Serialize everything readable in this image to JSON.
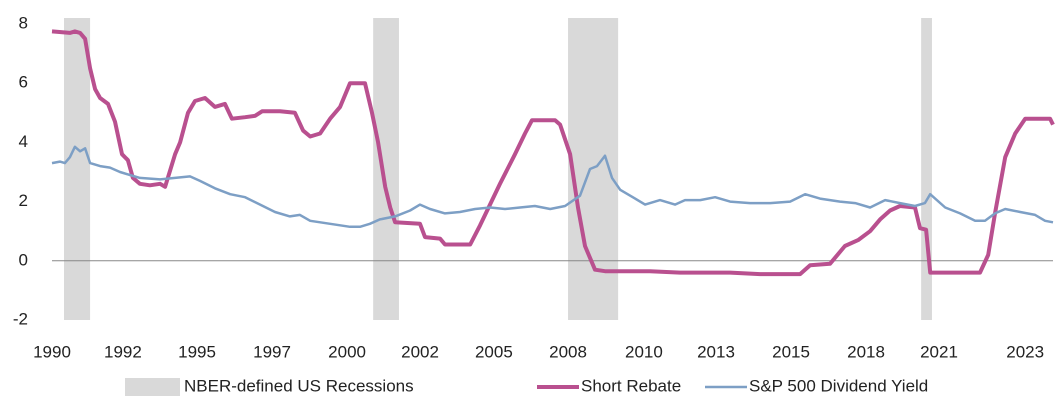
{
  "chart_data": {
    "type": "line",
    "xlim": [
      1990,
      2024.16
    ],
    "ylim": [
      -2,
      8
    ],
    "yticks": [
      -2,
      0,
      2,
      4,
      6,
      8
    ],
    "xticks": [
      {
        "value": 1990,
        "label": "1990"
      },
      {
        "value": 1992.42,
        "label": "1992"
      },
      {
        "value": 1994.95,
        "label": "1995"
      },
      {
        "value": 1997.51,
        "label": "1997"
      },
      {
        "value": 2000.07,
        "label": "2000"
      },
      {
        "value": 2002.56,
        "label": "2002"
      },
      {
        "value": 2005.08,
        "label": "2005"
      },
      {
        "value": 2007.61,
        "label": "2008"
      },
      {
        "value": 2010.2,
        "label": "2010"
      },
      {
        "value": 2012.66,
        "label": "2013"
      },
      {
        "value": 2015.22,
        "label": "2015"
      },
      {
        "value": 2017.78,
        "label": "2018"
      },
      {
        "value": 2020.27,
        "label": "2021"
      },
      {
        "value": 2023.21,
        "label": "2023"
      }
    ],
    "bands": {
      "name": "NBER-defined US Recessions",
      "color": "#d9d9d9",
      "spans": [
        [
          1990.41,
          1991.3
        ],
        [
          2000.96,
          2001.84
        ],
        [
          2007.61,
          2009.32
        ],
        [
          2019.66,
          2020.03
        ]
      ]
    },
    "series": [
      {
        "name": "Short Rebate",
        "color": "#b9508f",
        "width": 4,
        "x": [
          1990.0,
          1990.61,
          1990.78,
          1990.96,
          1991.13,
          1991.3,
          1991.47,
          1991.64,
          1991.91,
          1992.15,
          1992.39,
          1992.59,
          1992.76,
          1993.0,
          1993.34,
          1993.69,
          1993.86,
          1994.2,
          1994.37,
          1994.64,
          1994.88,
          1995.22,
          1995.56,
          1995.9,
          1996.14,
          1996.59,
          1996.93,
          1997.17,
          1997.78,
          1998.29,
          1998.57,
          1998.81,
          1999.15,
          1999.49,
          1999.83,
          2000.17,
          2000.68,
          2000.92,
          2001.13,
          2001.37,
          2001.54,
          2001.71,
          2002.56,
          2002.73,
          2003.24,
          2003.41,
          2004.27,
          2004.61,
          2005.29,
          2005.8,
          2006.14,
          2006.38,
          2007.17,
          2007.34,
          2007.68,
          2007.95,
          2008.19,
          2008.53,
          2008.87,
          2010.41,
          2011.43,
          2013.14,
          2014.16,
          2015.53,
          2015.87,
          2016.55,
          2017.06,
          2017.51,
          2017.92,
          2018.26,
          2018.6,
          2018.94,
          2019.45,
          2019.62,
          2019.83,
          2019.97,
          2021.67,
          2021.95,
          2022.18,
          2022.53,
          2022.87,
          2023.21,
          2024.06,
          2024.16
        ],
        "values": [
          7.75,
          7.7,
          7.75,
          7.7,
          7.5,
          6.5,
          5.8,
          5.5,
          5.3,
          4.7,
          3.6,
          3.4,
          2.8,
          2.6,
          2.55,
          2.6,
          2.5,
          3.6,
          4.0,
          5.0,
          5.4,
          5.5,
          5.2,
          5.3,
          4.8,
          4.85,
          4.9,
          5.05,
          5.05,
          5.0,
          4.4,
          4.2,
          4.3,
          4.8,
          5.2,
          6.0,
          6.0,
          5.0,
          4.0,
          2.5,
          1.8,
          1.3,
          1.25,
          0.8,
          0.75,
          0.55,
          0.55,
          1.2,
          2.6,
          3.6,
          4.3,
          4.75,
          4.75,
          4.6,
          3.6,
          1.8,
          0.5,
          -0.3,
          -0.35,
          -0.35,
          -0.4,
          -0.4,
          -0.45,
          -0.45,
          -0.15,
          -0.1,
          0.5,
          0.7,
          1.0,
          1.4,
          1.7,
          1.85,
          1.8,
          1.1,
          1.05,
          -0.4,
          -0.4,
          0.2,
          1.6,
          3.5,
          4.3,
          4.8,
          4.8,
          4.6
        ]
      },
      {
        "name": "S&P 500 Dividend Yield",
        "color": "#7d9fc5",
        "width": 2.5,
        "x": [
          1990.0,
          1990.27,
          1990.44,
          1990.61,
          1990.78,
          1990.96,
          1991.13,
          1991.3,
          1991.64,
          1991.98,
          1992.32,
          1992.66,
          1993.0,
          1993.69,
          1994.2,
          1994.71,
          1995.05,
          1995.56,
          1996.08,
          1996.59,
          1997.1,
          1997.61,
          1998.12,
          1998.46,
          1998.81,
          1999.49,
          2000.17,
          2000.51,
          2000.85,
          2001.19,
          2001.71,
          2002.22,
          2002.56,
          2002.9,
          2003.41,
          2003.92,
          2004.44,
          2004.95,
          2005.46,
          2005.97,
          2006.48,
          2007.0,
          2007.51,
          2008.02,
          2008.36,
          2008.6,
          2008.87,
          2009.11,
          2009.39,
          2009.9,
          2010.24,
          2010.75,
          2011.26,
          2011.6,
          2012.12,
          2012.63,
          2013.14,
          2013.82,
          2014.51,
          2015.19,
          2015.7,
          2016.21,
          2016.89,
          2017.41,
          2017.92,
          2018.43,
          2018.94,
          2019.45,
          2019.79,
          2019.97,
          2020.48,
          2020.99,
          2021.5,
          2021.84,
          2022.18,
          2022.53,
          2023.04,
          2023.55,
          2023.89,
          2024.16
        ],
        "values": [
          3.3,
          3.35,
          3.3,
          3.5,
          3.85,
          3.7,
          3.8,
          3.3,
          3.2,
          3.15,
          3.0,
          2.9,
          2.8,
          2.75,
          2.8,
          2.85,
          2.7,
          2.45,
          2.25,
          2.15,
          1.9,
          1.65,
          1.5,
          1.55,
          1.35,
          1.25,
          1.15,
          1.15,
          1.25,
          1.4,
          1.5,
          1.7,
          1.9,
          1.75,
          1.6,
          1.65,
          1.75,
          1.8,
          1.75,
          1.8,
          1.85,
          1.75,
          1.85,
          2.2,
          3.1,
          3.2,
          3.55,
          2.8,
          2.4,
          2.1,
          1.9,
          2.05,
          1.9,
          2.05,
          2.05,
          2.15,
          2.0,
          1.95,
          1.95,
          2.0,
          2.25,
          2.1,
          2.0,
          1.95,
          1.8,
          2.05,
          1.95,
          1.85,
          1.95,
          2.25,
          1.8,
          1.6,
          1.35,
          1.35,
          1.6,
          1.75,
          1.65,
          1.55,
          1.35,
          1.3
        ]
      }
    ]
  }
}
